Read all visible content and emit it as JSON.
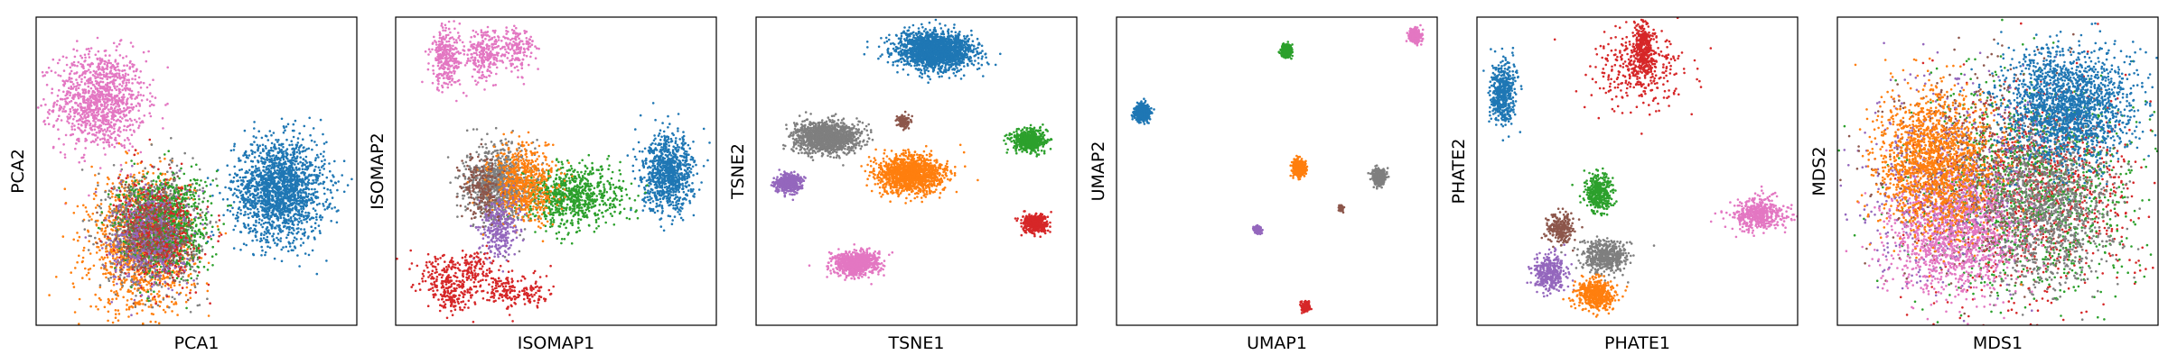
{
  "colors": {
    "blue": "#1f77b4",
    "orange": "#ff7f0e",
    "green": "#2ca02c",
    "red": "#d62728",
    "purple": "#9467bd",
    "brown": "#8c564b",
    "pink": "#e377c2",
    "gray": "#7f7f7f"
  },
  "chart_data": [
    {
      "type": "scatter",
      "xlabel": "PCA1",
      "ylabel": "PCA2",
      "grid": false,
      "ticks": "none",
      "clusters": [
        {
          "color": "pink",
          "cx": 0.2,
          "cy": 0.73,
          "sx": 0.07,
          "sy": 0.08,
          "n": 1100
        },
        {
          "color": "blue",
          "cx": 0.76,
          "cy": 0.44,
          "sx": 0.07,
          "sy": 0.08,
          "n": 1800
        },
        {
          "color": "orange",
          "cx": 0.33,
          "cy": 0.26,
          "sx": 0.08,
          "sy": 0.11,
          "n": 1300
        },
        {
          "color": "gray",
          "cx": 0.37,
          "cy": 0.31,
          "sx": 0.07,
          "sy": 0.09,
          "n": 1000
        },
        {
          "color": "green",
          "cx": 0.4,
          "cy": 0.33,
          "sx": 0.07,
          "sy": 0.08,
          "n": 900
        },
        {
          "color": "red",
          "cx": 0.38,
          "cy": 0.3,
          "sx": 0.06,
          "sy": 0.08,
          "n": 500
        },
        {
          "color": "purple",
          "cx": 0.35,
          "cy": 0.28,
          "sx": 0.06,
          "sy": 0.08,
          "n": 400
        },
        {
          "color": "brown",
          "cx": 0.36,
          "cy": 0.3,
          "sx": 0.06,
          "sy": 0.07,
          "n": 250
        }
      ]
    },
    {
      "type": "scatter",
      "xlabel": "ISOMAP1",
      "ylabel": "ISOMAP2",
      "grid": false,
      "ticks": "none",
      "clusters": [
        {
          "color": "pink",
          "cx": 0.16,
          "cy": 0.87,
          "sx": 0.025,
          "sy": 0.05,
          "n": 300
        },
        {
          "color": "pink",
          "cx": 0.28,
          "cy": 0.88,
          "sx": 0.03,
          "sy": 0.04,
          "n": 250
        },
        {
          "color": "pink",
          "cx": 0.38,
          "cy": 0.9,
          "sx": 0.025,
          "sy": 0.04,
          "n": 150
        },
        {
          "color": "blue",
          "cx": 0.85,
          "cy": 0.49,
          "sx": 0.04,
          "sy": 0.06,
          "n": 900
        },
        {
          "color": "green",
          "cx": 0.55,
          "cy": 0.42,
          "sx": 0.08,
          "sy": 0.05,
          "n": 800
        },
        {
          "color": "gray",
          "cx": 0.32,
          "cy": 0.46,
          "sx": 0.05,
          "sy": 0.06,
          "n": 900
        },
        {
          "color": "orange",
          "cx": 0.4,
          "cy": 0.46,
          "sx": 0.05,
          "sy": 0.06,
          "n": 600
        },
        {
          "color": "purple",
          "cx": 0.32,
          "cy": 0.32,
          "sx": 0.03,
          "sy": 0.05,
          "n": 300
        },
        {
          "color": "brown",
          "cx": 0.27,
          "cy": 0.45,
          "sx": 0.03,
          "sy": 0.05,
          "n": 200
        },
        {
          "color": "red",
          "cx": 0.15,
          "cy": 0.16,
          "sx": 0.04,
          "sy": 0.04,
          "n": 150
        },
        {
          "color": "red",
          "cx": 0.25,
          "cy": 0.18,
          "sx": 0.03,
          "sy": 0.03,
          "n": 120
        },
        {
          "color": "red",
          "cx": 0.33,
          "cy": 0.11,
          "sx": 0.03,
          "sy": 0.03,
          "n": 120
        },
        {
          "color": "red",
          "cx": 0.18,
          "cy": 0.09,
          "sx": 0.03,
          "sy": 0.03,
          "n": 120
        },
        {
          "color": "red",
          "cx": 0.42,
          "cy": 0.1,
          "sx": 0.03,
          "sy": 0.03,
          "n": 80
        }
      ]
    },
    {
      "type": "scatter",
      "xlabel": "TSNE1",
      "ylabel": "TSNE2",
      "grid": false,
      "ticks": "none",
      "clusters": [
        {
          "color": "blue",
          "cx": 0.56,
          "cy": 0.89,
          "sx": 0.06,
          "sy": 0.03,
          "n": 1800
        },
        {
          "color": "gray",
          "cx": 0.22,
          "cy": 0.61,
          "sx": 0.05,
          "sy": 0.025,
          "n": 1300
        },
        {
          "color": "orange",
          "cx": 0.48,
          "cy": 0.49,
          "sx": 0.05,
          "sy": 0.03,
          "n": 1400
        },
        {
          "color": "green",
          "cx": 0.85,
          "cy": 0.6,
          "sx": 0.025,
          "sy": 0.018,
          "n": 600
        },
        {
          "color": "red",
          "cx": 0.87,
          "cy": 0.33,
          "sx": 0.02,
          "sy": 0.015,
          "n": 400
        },
        {
          "color": "purple",
          "cx": 0.1,
          "cy": 0.46,
          "sx": 0.02,
          "sy": 0.015,
          "n": 400
        },
        {
          "color": "pink",
          "cx": 0.31,
          "cy": 0.2,
          "sx": 0.035,
          "sy": 0.02,
          "n": 800
        },
        {
          "color": "brown",
          "cx": 0.46,
          "cy": 0.66,
          "sx": 0.01,
          "sy": 0.01,
          "n": 120
        }
      ]
    },
    {
      "type": "scatter",
      "xlabel": "UMAP1",
      "ylabel": "UMAP2",
      "grid": false,
      "ticks": "none",
      "clusters": [
        {
          "color": "blue",
          "cx": 0.08,
          "cy": 0.69,
          "sx": 0.01,
          "sy": 0.012,
          "n": 900
        },
        {
          "color": "green",
          "cx": 0.53,
          "cy": 0.89,
          "sx": 0.008,
          "sy": 0.01,
          "n": 400
        },
        {
          "color": "pink",
          "cx": 0.93,
          "cy": 0.94,
          "sx": 0.009,
          "sy": 0.01,
          "n": 400
        },
        {
          "color": "orange",
          "cx": 0.57,
          "cy": 0.51,
          "sx": 0.009,
          "sy": 0.012,
          "n": 500
        },
        {
          "color": "gray",
          "cx": 0.82,
          "cy": 0.48,
          "sx": 0.009,
          "sy": 0.012,
          "n": 450
        },
        {
          "color": "brown",
          "cx": 0.7,
          "cy": 0.38,
          "sx": 0.004,
          "sy": 0.005,
          "n": 60
        },
        {
          "color": "purple",
          "cx": 0.44,
          "cy": 0.31,
          "sx": 0.006,
          "sy": 0.006,
          "n": 120
        },
        {
          "color": "red",
          "cx": 0.59,
          "cy": 0.06,
          "sx": 0.006,
          "sy": 0.008,
          "n": 200
        }
      ]
    },
    {
      "type": "scatter",
      "xlabel": "PHATE1",
      "ylabel": "PHATE2",
      "grid": false,
      "ticks": "none",
      "clusters": [
        {
          "color": "blue",
          "cx": 0.08,
          "cy": 0.75,
          "sx": 0.02,
          "sy": 0.05,
          "n": 500
        },
        {
          "color": "red",
          "cx": 0.5,
          "cy": 0.83,
          "sx": 0.07,
          "sy": 0.06,
          "n": 350
        },
        {
          "color": "red",
          "cx": 0.52,
          "cy": 0.9,
          "sx": 0.015,
          "sy": 0.04,
          "n": 300
        },
        {
          "color": "green",
          "cx": 0.38,
          "cy": 0.43,
          "sx": 0.02,
          "sy": 0.035,
          "n": 400
        },
        {
          "color": "pink",
          "cx": 0.88,
          "cy": 0.36,
          "sx": 0.04,
          "sy": 0.025,
          "n": 450
        },
        {
          "color": "brown",
          "cx": 0.26,
          "cy": 0.31,
          "sx": 0.02,
          "sy": 0.025,
          "n": 250
        },
        {
          "color": "gray",
          "cx": 0.4,
          "cy": 0.22,
          "sx": 0.035,
          "sy": 0.025,
          "n": 500
        },
        {
          "color": "purple",
          "cx": 0.23,
          "cy": 0.17,
          "sx": 0.025,
          "sy": 0.03,
          "n": 350
        },
        {
          "color": "orange",
          "cx": 0.37,
          "cy": 0.1,
          "sx": 0.03,
          "sy": 0.025,
          "n": 500
        }
      ]
    },
    {
      "type": "scatter",
      "xlabel": "MDS1",
      "ylabel": "MDS2",
      "grid": false,
      "ticks": "none",
      "clusters": [
        {
          "color": "red",
          "cx": 0.62,
          "cy": 0.44,
          "sx": 0.16,
          "sy": 0.17,
          "n": 1000
        },
        {
          "color": "green",
          "cx": 0.6,
          "cy": 0.45,
          "sx": 0.17,
          "sy": 0.17,
          "n": 1200
        },
        {
          "color": "purple",
          "cx": 0.35,
          "cy": 0.45,
          "sx": 0.14,
          "sy": 0.16,
          "n": 700
        },
        {
          "color": "brown",
          "cx": 0.45,
          "cy": 0.5,
          "sx": 0.15,
          "sy": 0.17,
          "n": 600
        },
        {
          "color": "gray",
          "cx": 0.66,
          "cy": 0.38,
          "sx": 0.1,
          "sy": 0.12,
          "n": 1100
        },
        {
          "color": "pink",
          "cx": 0.36,
          "cy": 0.3,
          "sx": 0.1,
          "sy": 0.1,
          "n": 1200
        },
        {
          "color": "orange",
          "cx": 0.3,
          "cy": 0.53,
          "sx": 0.09,
          "sy": 0.11,
          "n": 1600
        },
        {
          "color": "blue",
          "cx": 0.72,
          "cy": 0.71,
          "sx": 0.1,
          "sy": 0.09,
          "n": 1800
        }
      ]
    }
  ]
}
